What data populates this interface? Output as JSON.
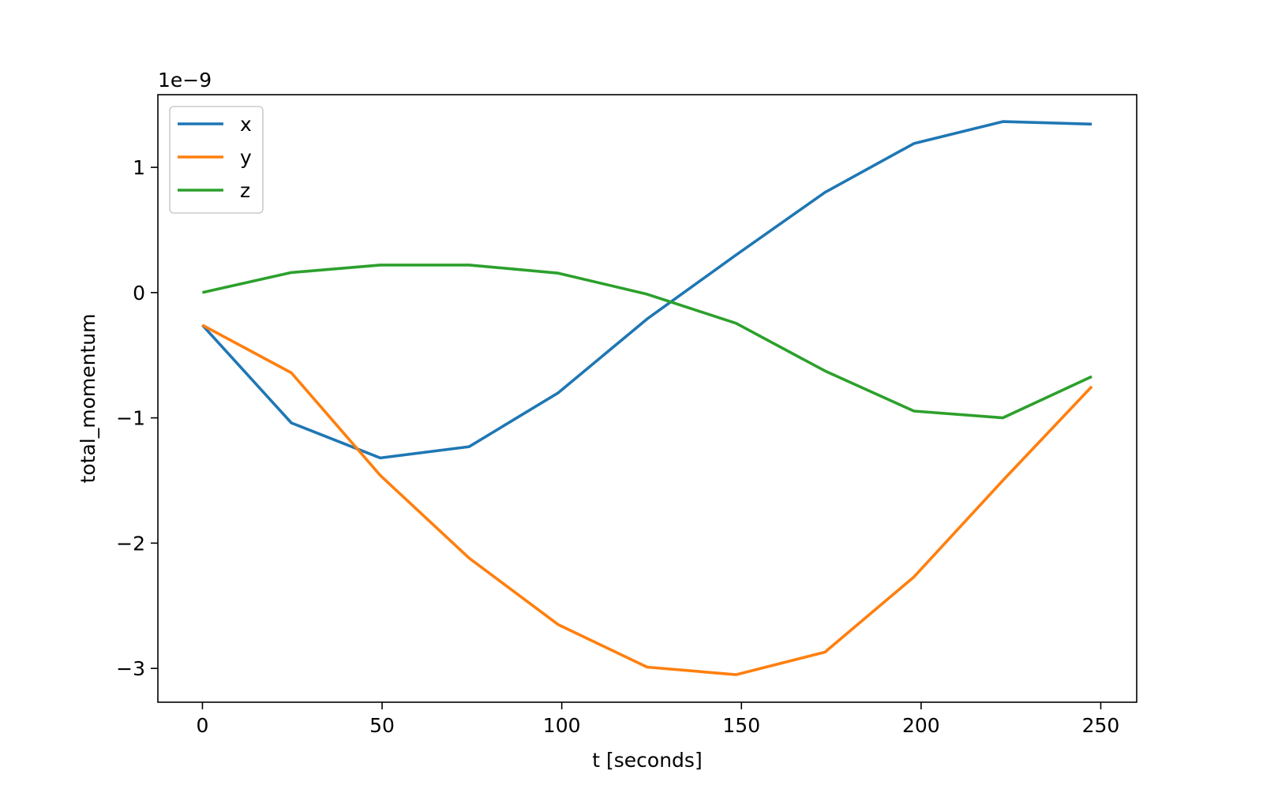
{
  "chart_data": {
    "type": "line",
    "title": "",
    "xlabel": "t [seconds]",
    "ylabel": "total_momentum",
    "y_offset_label": "1e−9",
    "xlim": [
      -12.4,
      260
    ],
    "ylim": [
      -3.27,
      1.58
    ],
    "xticks": [
      0,
      50,
      100,
      150,
      200,
      250
    ],
    "xtick_labels": [
      "0",
      "50",
      "100",
      "150",
      "200",
      "250"
    ],
    "yticks": [
      1,
      0,
      -1,
      -2,
      -3
    ],
    "ytick_labels": [
      "1",
      "0",
      "−1",
      "−2",
      "−3"
    ],
    "grid": false,
    "legend_position": "upper-left",
    "x": [
      0,
      24.75,
      49.5,
      74.25,
      99,
      123.75,
      148.5,
      173.25,
      198,
      222.75,
      247.5
    ],
    "series": [
      {
        "name": "x",
        "color": "#1f77b4",
        "values": [
          -0.26,
          -1.04,
          -1.32,
          -1.23,
          -0.8,
          -0.21,
          0.3,
          0.8,
          1.19,
          1.365,
          1.345
        ]
      },
      {
        "name": "y",
        "color": "#ff7f0e",
        "values": [
          -0.26,
          -0.64,
          -1.46,
          -2.12,
          -2.65,
          -2.99,
          -3.05,
          -2.87,
          -2.27,
          -1.5,
          -0.75
        ]
      },
      {
        "name": "z",
        "color": "#2ca02c",
        "values": [
          0.0,
          0.16,
          0.22,
          0.22,
          0.155,
          -0.013,
          -0.245,
          -0.625,
          -0.946,
          -1.0,
          -0.67
        ]
      }
    ]
  }
}
